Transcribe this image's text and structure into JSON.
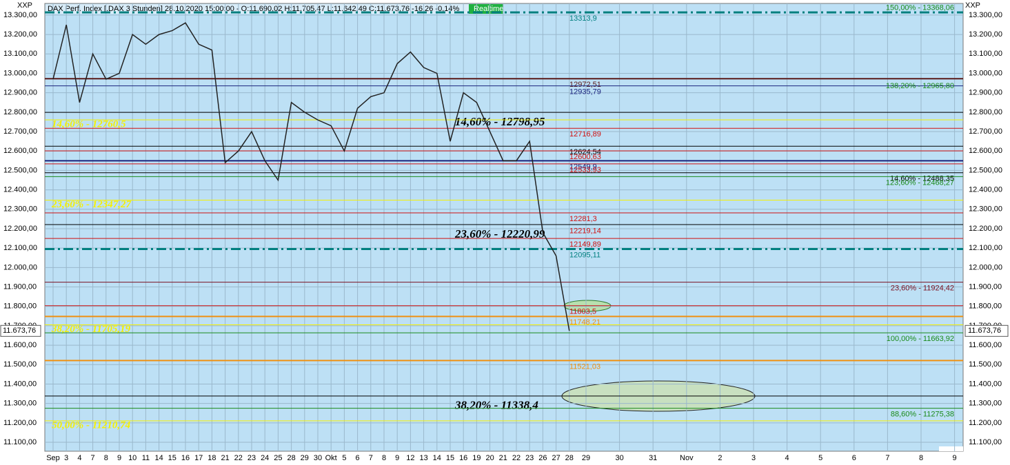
{
  "chart_data": {
    "type": "line",
    "header": "DAX Perf. Index [.DAX 3 Stunden] 28.10.2020 15:00:00 - O:11.690,02 H:11.705,47 L:11.642,49 C:11.673,76 -16,26 -0,14%",
    "status": "Realtime",
    "axis_code": "XXP",
    "last_price": {
      "value": 11673.76,
      "label": "11.673,76"
    },
    "categories": [
      "Sep",
      "3",
      "4",
      "7",
      "8",
      "9",
      "10",
      "11",
      "14",
      "15",
      "16",
      "17",
      "18",
      "21",
      "22",
      "23",
      "24",
      "25",
      "28",
      "29",
      "30",
      "Okt",
      "5",
      "6",
      "7",
      "8",
      "9",
      "12",
      "13",
      "14",
      "15",
      "16",
      "19",
      "20",
      "21",
      "22",
      "23",
      "26",
      "27",
      "28",
      "29",
      "30",
      "31",
      "Nov",
      "2",
      "3",
      "4",
      "5",
      "6",
      "7",
      "8",
      "9"
    ],
    "series": [
      {
        "name": "DAX",
        "color": "#222222",
        "values": [
          12970,
          13250,
          12850,
          13100,
          12970,
          13000,
          13200,
          13150,
          13200,
          13220,
          13260,
          13150,
          13120,
          12540,
          12600,
          12700,
          12550,
          12450,
          12850,
          12800,
          12760,
          12730,
          12600,
          12820,
          12880,
          12900,
          13050,
          13110,
          13030,
          13000,
          12650,
          12900,
          12850,
          12700,
          12550,
          12550,
          12650,
          12180,
          12060,
          11674,
          null,
          null,
          null,
          null,
          null,
          null,
          null,
          null,
          null,
          null,
          null,
          null
        ]
      }
    ],
    "ylim": [
      11054,
      13360
    ],
    "yticks": [
      {
        "value": 11100,
        "label": "11.100,00"
      },
      {
        "value": 11200,
        "label": "11.200,00"
      },
      {
        "value": 11300,
        "label": "11.300,00"
      },
      {
        "value": 11400,
        "label": "11.400,00"
      },
      {
        "value": 11500,
        "label": "11.500,00"
      },
      {
        "value": 11600,
        "label": "11.600,00"
      },
      {
        "value": 11700,
        "label": "11.700,00"
      },
      {
        "value": 11800,
        "label": "11.800,00"
      },
      {
        "value": 11900,
        "label": "11.900,00"
      },
      {
        "value": 12000,
        "label": "12.000,00"
      },
      {
        "value": 12100,
        "label": "12.100,00"
      },
      {
        "value": 12200,
        "label": "12.200,00"
      },
      {
        "value": 12300,
        "label": "12.300,00"
      },
      {
        "value": 12400,
        "label": "12.400,00"
      },
      {
        "value": 12500,
        "label": "12.500,00"
      },
      {
        "value": 12600,
        "label": "12.600,00"
      },
      {
        "value": 12700,
        "label": "12.700,00"
      },
      {
        "value": 12800,
        "label": "12.800,00"
      },
      {
        "value": 12900,
        "label": "12.900,00"
      },
      {
        "value": 13000,
        "label": "13.000,00"
      },
      {
        "value": 13100,
        "label": "13.100,00"
      },
      {
        "value": 13200,
        "label": "13.200,00"
      },
      {
        "value": 13300,
        "label": "13.300,00"
      }
    ],
    "grid": true,
    "levels": [
      {
        "value": 13368.06,
        "label": "150,00% - 13368,06",
        "color": "#1a8a1a",
        "pos": "right",
        "style": "none"
      },
      {
        "value": 13313.9,
        "label": "13313,9",
        "color": "#007f7f",
        "pos": "mid",
        "style": "dashdot"
      },
      {
        "value": 12972.51,
        "label": "12972,51",
        "color": "#5a1a1a",
        "pos": "mid",
        "style": "thick"
      },
      {
        "value": 12935.79,
        "label": "12935,79",
        "color": "#1a237e",
        "pos": "mid",
        "style": "solid"
      },
      {
        "value": 12965.8,
        "label": "138,20% - 12965,80",
        "color": "#1a8a1a",
        "pos": "right",
        "style": "none"
      },
      {
        "value": 12798.95,
        "label": "14,60% - 12798,95",
        "color": "#000000",
        "pos": "center",
        "style": "solid"
      },
      {
        "value": 12760.5,
        "label": "14,60% - 12760,5",
        "color": "#f5f000",
        "pos": "left",
        "style": "solid"
      },
      {
        "value": 12716.89,
        "label": "12716,89",
        "color": "#d01010",
        "pos": "mid",
        "style": "solid"
      },
      {
        "value": 12624.54,
        "label": "12624,54",
        "color": "#000000",
        "pos": "mid",
        "style": "solid"
      },
      {
        "value": 12600.63,
        "label": "12600,63",
        "color": "#d01010",
        "pos": "mid",
        "style": "solid"
      },
      {
        "value": 12549.9,
        "label": "12549,9",
        "color": "#1a237e",
        "pos": "mid",
        "style": "thick"
      },
      {
        "value": 12533.93,
        "label": "12533,93",
        "color": "#d01010",
        "pos": "mid",
        "style": "solid"
      },
      {
        "value": 12488.35,
        "label": "14,60% - 12488,35",
        "color": "#000000",
        "pos": "right",
        "style": "solid"
      },
      {
        "value": 12468.27,
        "label": "123,60% - 12468,27",
        "color": "#1a8a1a",
        "pos": "right",
        "style": "solid"
      },
      {
        "value": 12347.27,
        "label": "23,60% - 12347,27",
        "color": "#f5f000",
        "pos": "left",
        "style": "solid"
      },
      {
        "value": 12281.3,
        "label": "12281,3",
        "color": "#d01010",
        "pos": "mid",
        "style": "solid"
      },
      {
        "value": 12220.99,
        "label": "23,60% - 12220,99",
        "color": "#000000",
        "pos": "center",
        "style": "solid"
      },
      {
        "value": 12219.14,
        "label": "12219,14",
        "color": "#d01010",
        "pos": "mid",
        "style": "none"
      },
      {
        "value": 12149.89,
        "label": "12149,89",
        "color": "#d01010",
        "pos": "mid",
        "style": "solid"
      },
      {
        "value": 12095.11,
        "label": "12095,11",
        "color": "#007f7f",
        "pos": "mid",
        "style": "dashdot"
      },
      {
        "value": 11924.42,
        "label": "23,60% - 11924,42",
        "color": "#7a1020",
        "pos": "right",
        "style": "solid"
      },
      {
        "value": 11803.5,
        "label": "11803,5",
        "color": "#d01010",
        "pos": "mid",
        "style": "solid"
      },
      {
        "value": 11748.21,
        "label": "11748,21",
        "color": "#f09010",
        "pos": "mid",
        "style": "thick"
      },
      {
        "value": 11705.19,
        "label": "38,20% - 11705,19",
        "color": "#f5f000",
        "pos": "left",
        "style": "solid"
      },
      {
        "value": 11663.92,
        "label": "100,00% - 11663,92",
        "color": "#1a8a1a",
        "pos": "right",
        "style": "solid"
      },
      {
        "value": 11521.03,
        "label": "11521,03",
        "color": "#f09010",
        "pos": "mid",
        "style": "thick"
      },
      {
        "value": 11338.4,
        "label": "38,20% - 11338,4",
        "color": "#000000",
        "pos": "center",
        "style": "solid"
      },
      {
        "value": 11275.38,
        "label": "88,60% - 11275,38",
        "color": "#1a8a1a",
        "pos": "right",
        "style": "solid"
      },
      {
        "value": 11210.74,
        "label": "50,00% - 11210,74",
        "color": "#f5f000",
        "pos": "left",
        "style": "solid"
      }
    ]
  }
}
